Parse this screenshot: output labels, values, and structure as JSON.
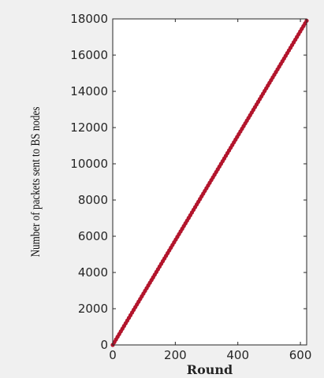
{
  "chart_data": {
    "type": "line",
    "xlabel": "Round",
    "ylabel": "Number of packets sent to BS nodes",
    "xlim": [
      0,
      620
    ],
    "ylim": [
      0,
      18000
    ],
    "x_ticks": [
      0,
      200,
      400,
      600
    ],
    "y_ticks": [
      0,
      2000,
      4000,
      6000,
      8000,
      10000,
      12000,
      14000,
      16000,
      18000
    ],
    "grid": false,
    "series": [
      {
        "color": "#b3152c",
        "marker": "dot",
        "x": [
          0,
          620
        ],
        "y": [
          0,
          17900
        ]
      }
    ]
  }
}
